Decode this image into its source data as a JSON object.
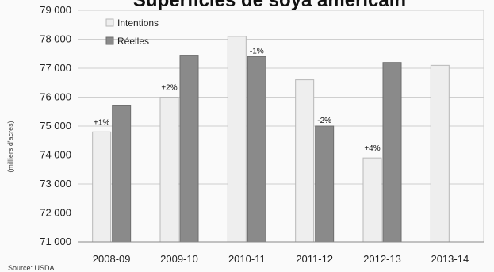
{
  "chart_data": {
    "type": "bar",
    "title": "Superficies de soya américain",
    "ylabel": "(milliers d'acres)",
    "source": "Source: USDA",
    "categories": [
      "2008-09",
      "2009-10",
      "2010-11",
      "2011-12",
      "2012-13",
      "2013-14"
    ],
    "series": [
      {
        "name": "Intentions",
        "color": "#eeeeee",
        "values": [
          74800,
          76000,
          78100,
          76600,
          73900,
          77100
        ]
      },
      {
        "name": "Réelles",
        "color": "#8a8a8a",
        "values": [
          75700,
          77450,
          77400,
          75000,
          77200,
          null
        ]
      }
    ],
    "ylim": [
      71000,
      79000
    ],
    "yticks": [
      71000,
      72000,
      73000,
      74000,
      75000,
      76000,
      77000,
      78000,
      79000
    ],
    "ytick_labels": [
      "71 000",
      "72 000",
      "73 000",
      "74 000",
      "75 000",
      "76 000",
      "77 000",
      "78 000",
      "79 000"
    ],
    "annotations": [
      {
        "category": "2008-09",
        "text": "+1%",
        "above": "Intentions"
      },
      {
        "category": "2009-10",
        "text": "+2%",
        "above": "Intentions"
      },
      {
        "category": "2010-11",
        "text": "-1%",
        "above": "Réelles"
      },
      {
        "category": "2011-12",
        "text": "-2%",
        "above": "Réelles"
      },
      {
        "category": "2012-13",
        "text": "+4%",
        "above": "Intentions"
      }
    ],
    "grid": true,
    "legend": "top-left"
  }
}
